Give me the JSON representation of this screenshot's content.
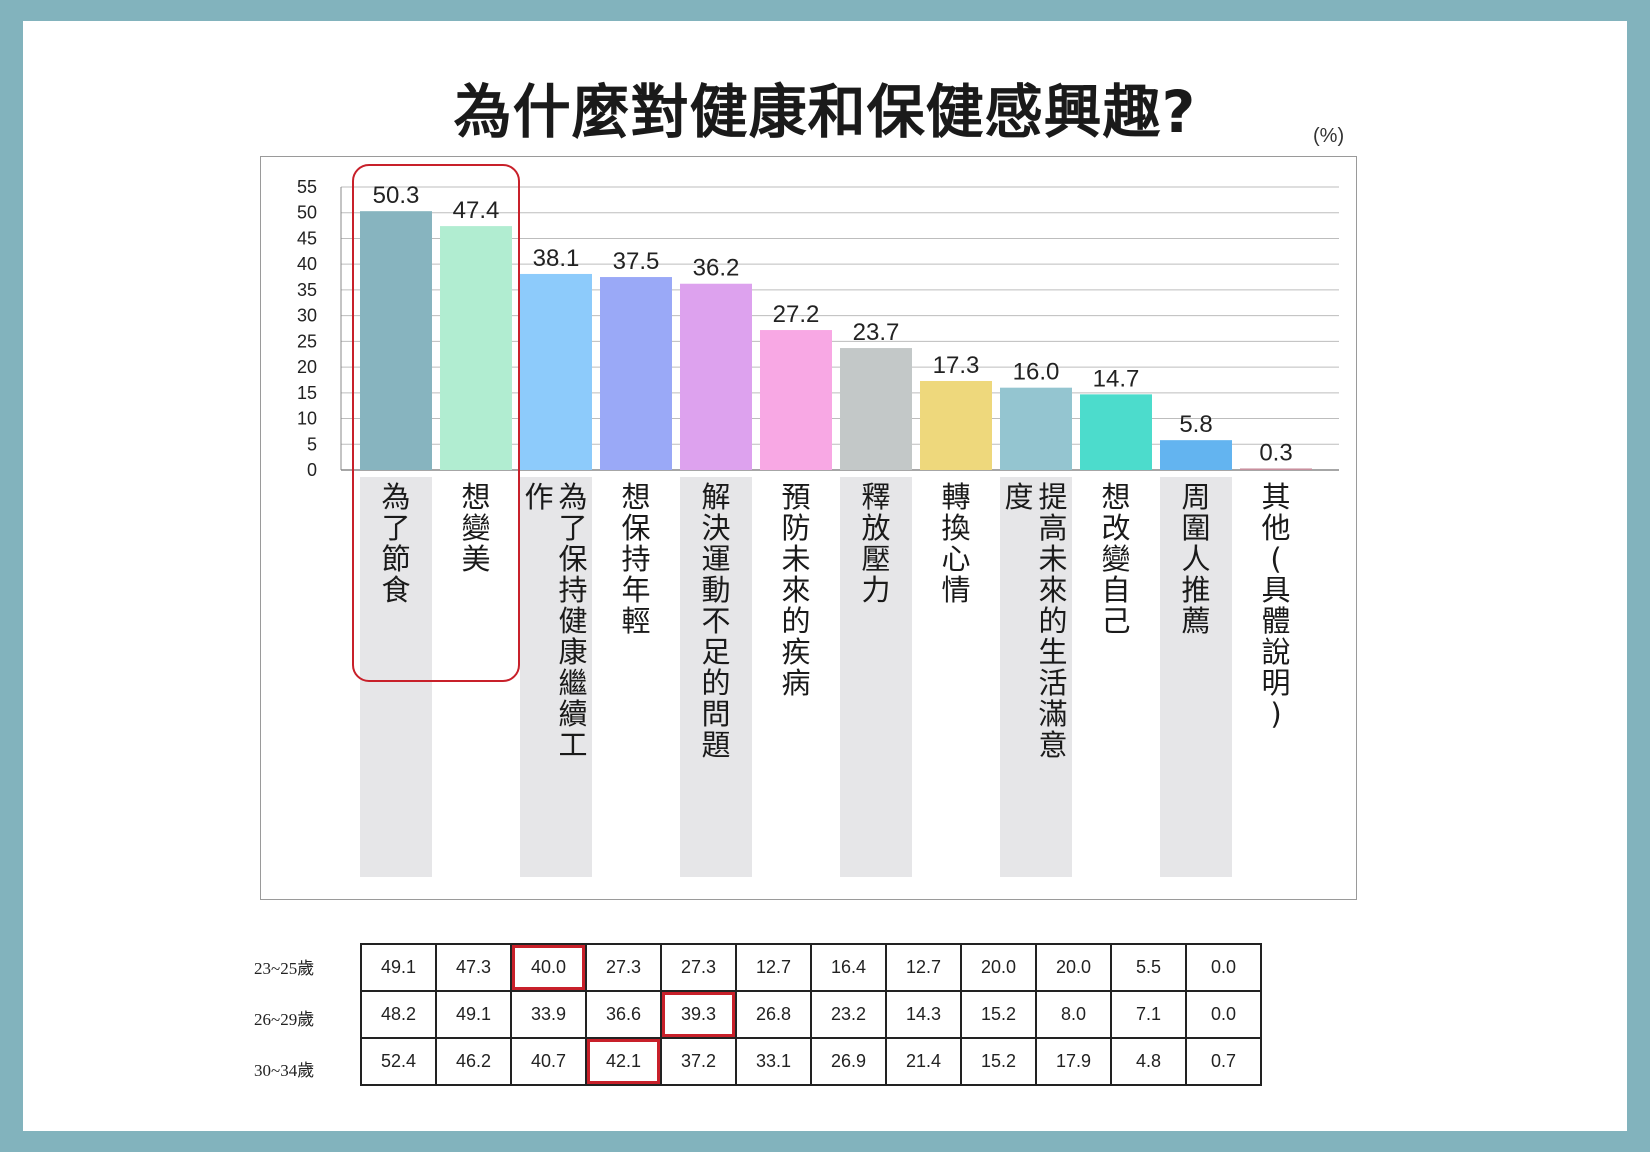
{
  "title": "為什麼對健康和保健感興趣?",
  "unit": "(%)",
  "colors": {
    "frame": "#82b3bd",
    "highlight": "#c8202a",
    "label_column": "#e6e6e8"
  },
  "chart_data": {
    "type": "bar",
    "ylim": [
      0,
      55
    ],
    "yticks": [
      "0",
      "5",
      "10",
      "15",
      "20",
      "25",
      "30",
      "35",
      "40",
      "45",
      "50",
      "55"
    ],
    "grid": true,
    "categories": [
      "為了節食",
      "想變美",
      "為了保持健康繼續工作",
      "想保持年輕",
      "解決運動不足的問題",
      "預防未來的疾病",
      "釋放壓力",
      "轉換心情",
      "提高未來的生活滿意度",
      "想改變自己",
      "周圍人推薦",
      "其他(具體說明)"
    ],
    "values": [
      50.3,
      47.4,
      38.1,
      37.5,
      36.2,
      27.2,
      23.7,
      17.3,
      16.0,
      14.7,
      5.8,
      0.3
    ],
    "value_labels": [
      "50.3",
      "47.4",
      "38.1",
      "37.5",
      "36.2",
      "27.2",
      "23.7",
      "17.3",
      "16.0",
      "14.7",
      "5.8",
      "0.3"
    ],
    "bar_colors": [
      "#87b4bf",
      "#b1edd1",
      "#8dcbfb",
      "#9aa9f7",
      "#dda2ee",
      "#f8a8e4",
      "#c3c8c8",
      "#eed87c",
      "#94c5d0",
      "#4cdccc",
      "#63b4f0",
      "#c88f9d"
    ],
    "highlighted_categories": [
      "為了節食",
      "想變美"
    ]
  },
  "age_table": {
    "rows": [
      {
        "label": "23~25歲",
        "values": [
          "49.1",
          "47.3",
          "40.0",
          "27.3",
          "27.3",
          "12.7",
          "16.4",
          "12.7",
          "20.0",
          "20.0",
          "5.5",
          "0.0"
        ],
        "highlight_index": 2
      },
      {
        "label": "26~29歲",
        "values": [
          "48.2",
          "49.1",
          "33.9",
          "36.6",
          "39.3",
          "26.8",
          "23.2",
          "14.3",
          "15.2",
          "8.0",
          "7.1",
          "0.0"
        ],
        "highlight_index": 4
      },
      {
        "label": "30~34歲",
        "values": [
          "52.4",
          "46.2",
          "40.7",
          "42.1",
          "37.2",
          "33.1",
          "26.9",
          "21.4",
          "15.2",
          "17.9",
          "4.8",
          "0.7"
        ],
        "highlight_index": 3
      }
    ]
  }
}
